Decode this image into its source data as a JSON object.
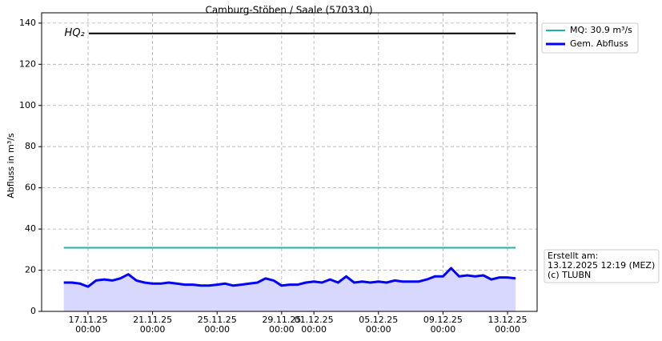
{
  "chart_data": {
    "type": "line",
    "title": "Camburg-Stöben / Saale (57033.0)",
    "ylabel": "Abfluss in m³/s",
    "ylim": [
      0,
      145
    ],
    "yticks": [
      0,
      20,
      40,
      60,
      80,
      100,
      120,
      140
    ],
    "xlim": [
      "2025-11-14T03:00",
      "2025-12-14T20:00"
    ],
    "xticks": [
      {
        "value": "2025-11-17T00:00",
        "label": "17.11.25\n00:00"
      },
      {
        "value": "2025-11-21T00:00",
        "label": "21.11.25\n00:00"
      },
      {
        "value": "2025-11-25T00:00",
        "label": "25.11.25\n00:00"
      },
      {
        "value": "2025-11-29T00:00",
        "label": "29.11.25\n00:00"
      },
      {
        "value": "2025-12-01T00:00",
        "label": "01.12.25\n00:00"
      },
      {
        "value": "2025-12-05T00:00",
        "label": "05.12.25\n00:00"
      },
      {
        "value": "2025-12-09T00:00",
        "label": "09.12.25\n00:00"
      },
      {
        "value": "2025-12-13T00:00",
        "label": "13.12.25\n00:00"
      }
    ],
    "grid": true,
    "legend": "outside-upper-right",
    "hq2": {
      "label": "HQ₂",
      "value": 135,
      "color": "#000000",
      "x": [
        "2025-11-17T01:00",
        "2025-12-13T12:00"
      ]
    },
    "series": [
      {
        "name": "MQ: 30.9 m³/s",
        "color": "#20b2aa",
        "x": [
          "2025-11-15T12:00",
          "2025-12-13T12:00"
        ],
        "values": [
          30.9,
          30.9
        ]
      },
      {
        "name": "Gem. Abfluss",
        "color": "#0000ff",
        "fill": "#d8d8ff",
        "x": [
          "2025-11-15T12:00",
          "2025-11-16T00:00",
          "2025-11-16T12:00",
          "2025-11-17T00:00",
          "2025-11-17T12:00",
          "2025-11-18T00:00",
          "2025-11-18T12:00",
          "2025-11-19T00:00",
          "2025-11-19T12:00",
          "2025-11-20T00:00",
          "2025-11-20T12:00",
          "2025-11-21T00:00",
          "2025-11-21T12:00",
          "2025-11-22T00:00",
          "2025-11-22T12:00",
          "2025-11-23T00:00",
          "2025-11-23T12:00",
          "2025-11-24T00:00",
          "2025-11-24T12:00",
          "2025-11-25T00:00",
          "2025-11-25T12:00",
          "2025-11-26T00:00",
          "2025-11-26T12:00",
          "2025-11-27T00:00",
          "2025-11-27T12:00",
          "2025-11-28T00:00",
          "2025-11-28T12:00",
          "2025-11-29T00:00",
          "2025-11-29T12:00",
          "2025-11-30T00:00",
          "2025-11-30T12:00",
          "2025-12-01T00:00",
          "2025-12-01T12:00",
          "2025-12-02T00:00",
          "2025-12-02T12:00",
          "2025-12-03T00:00",
          "2025-12-03T12:00",
          "2025-12-04T00:00",
          "2025-12-04T12:00",
          "2025-12-05T00:00",
          "2025-12-05T12:00",
          "2025-12-06T00:00",
          "2025-12-06T12:00",
          "2025-12-07T00:00",
          "2025-12-07T12:00",
          "2025-12-08T00:00",
          "2025-12-08T12:00",
          "2025-12-09T00:00",
          "2025-12-09T12:00",
          "2025-12-10T00:00",
          "2025-12-10T12:00",
          "2025-12-11T00:00",
          "2025-12-11T12:00",
          "2025-12-12T00:00",
          "2025-12-12T12:00",
          "2025-12-13T00:00",
          "2025-12-13T12:00"
        ],
        "values": [
          14,
          14,
          13.5,
          12,
          15,
          15.5,
          15,
          16,
          18,
          15,
          14,
          13.5,
          13.5,
          14,
          13.5,
          13,
          13,
          12.5,
          12.5,
          13,
          13.5,
          12.5,
          13,
          13.5,
          14,
          16,
          15,
          12.5,
          13,
          13,
          14,
          14.5,
          14,
          15.5,
          14,
          17,
          14,
          14.5,
          14,
          14.5,
          14,
          15,
          14.5,
          14.5,
          14.5,
          15.5,
          17,
          17,
          21,
          17,
          17.5,
          17,
          17.5,
          15.5,
          16.5,
          16.5,
          16
        ]
      }
    ],
    "annotation": [
      "Erstellt am:",
      "13.12.2025 12:19 (MEZ)",
      "(c) TLUBN"
    ]
  }
}
